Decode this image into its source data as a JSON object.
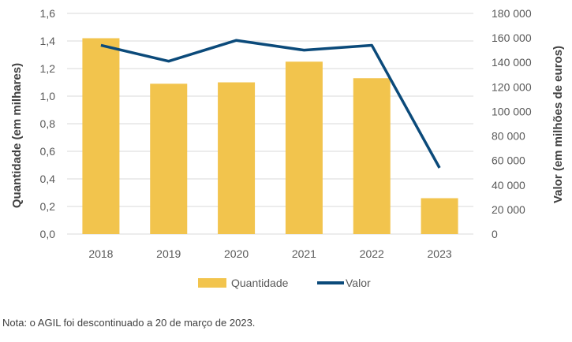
{
  "chart_data": {
    "type": "bar",
    "categories": [
      "2018",
      "2019",
      "2020",
      "2021",
      "2022",
      "2023"
    ],
    "series": [
      {
        "name": "Quantidade",
        "type": "bar",
        "axis": "left",
        "values": [
          1.42,
          1.09,
          1.1,
          1.25,
          1.13,
          0.26
        ]
      },
      {
        "name": "Valor",
        "type": "line",
        "axis": "right",
        "values": [
          154000,
          141000,
          158000,
          150000,
          154000,
          54000
        ]
      }
    ],
    "title": "",
    "ylabel": "Quantidade (em milhares)",
    "y2label": "Valor (em milhões de euros)",
    "ylim": [
      0,
      1.6
    ],
    "y2lim": [
      0,
      180000
    ],
    "yticks": [
      "0,0",
      "0,2",
      "0,4",
      "0,6",
      "0,8",
      "1,0",
      "1,2",
      "1,4",
      "1,6"
    ],
    "y2ticks": [
      "0",
      "20 000",
      "40 000",
      "60 000",
      "80 000",
      "100 000",
      "120 000",
      "140 000",
      "160 000",
      "180 000"
    ],
    "grid": true,
    "legend": "bottom",
    "colors": {
      "bar": "#F2C44D",
      "line": "#0B4A7A",
      "grid": "#D9D9D9"
    }
  },
  "note": "Nota: o AGIL foi descontinuado a 20 de março de 2023."
}
